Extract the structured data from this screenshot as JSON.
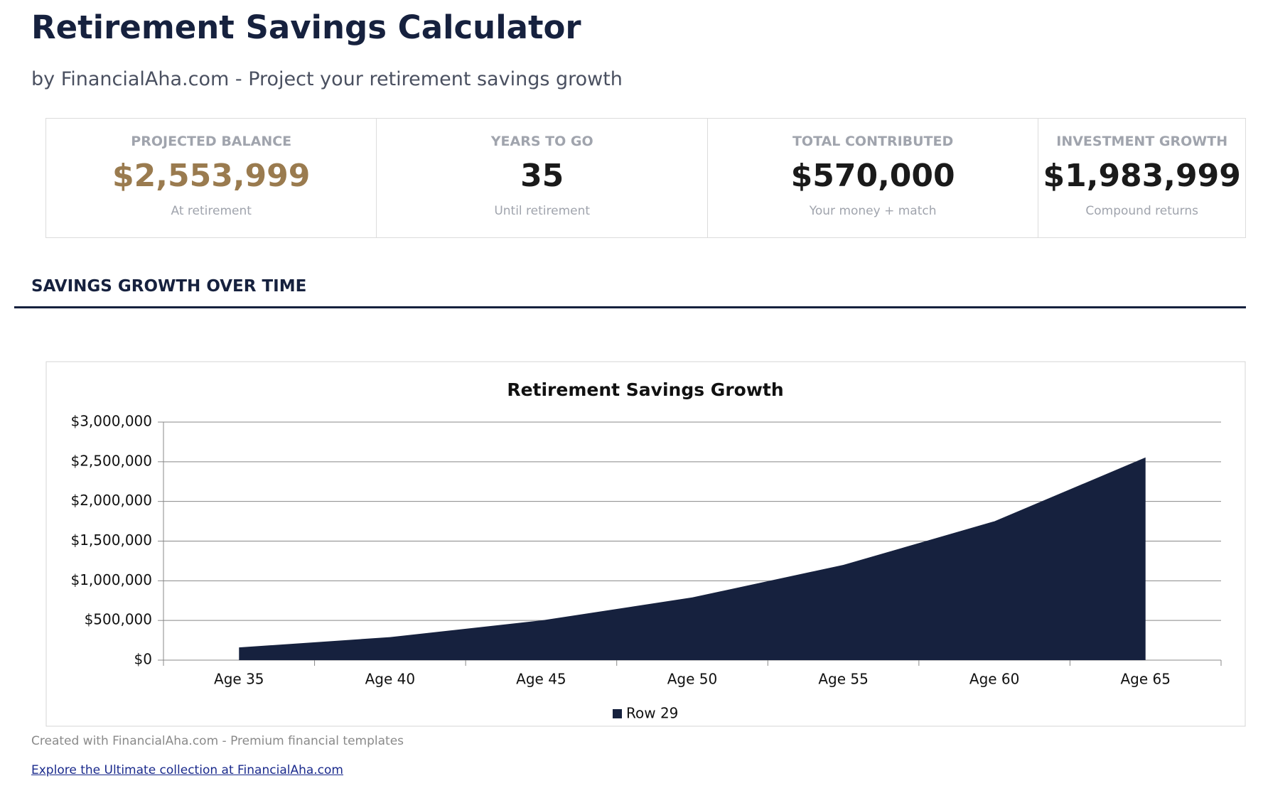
{
  "header": {
    "title": "Retirement Savings Calculator",
    "subtitle": "by FinancialAha.com - Project your retirement savings growth"
  },
  "metrics": [
    {
      "label": "PROJECTED BALANCE",
      "value": "$2,553,999",
      "note": "At retirement"
    },
    {
      "label": "YEARS TO GO",
      "value": "35",
      "note": "Until retirement"
    },
    {
      "label": "TOTAL CONTRIBUTED",
      "value": "$570,000",
      "note": "Your money + match"
    },
    {
      "label": "INVESTMENT GROWTH",
      "value": "$1,983,999",
      "note": "Compound returns"
    }
  ],
  "section_title": "SAVINGS GROWTH OVER TIME",
  "chart_data": {
    "type": "area",
    "title": "Retirement Savings Growth",
    "categories": [
      "Age 35",
      "Age 40",
      "Age 45",
      "Age 50",
      "Age 55",
      "Age 60",
      "Age 65"
    ],
    "series": [
      {
        "name": "Row 29",
        "color": "#16213e",
        "values": [
          160000,
          290000,
          500000,
          790000,
          1200000,
          1750000,
          2553999
        ]
      }
    ],
    "ylim": [
      0,
      3000000
    ],
    "yticks": [
      {
        "value": 0,
        "label": "$0"
      },
      {
        "value": 500000,
        "label": "$500,000"
      },
      {
        "value": 1000000,
        "label": "$1,000,000"
      },
      {
        "value": 1500000,
        "label": "$1,500,000"
      },
      {
        "value": 2000000,
        "label": "$2,000,000"
      },
      {
        "value": 2500000,
        "label": "$2,500,000"
      },
      {
        "value": 3000000,
        "label": "$3,000,000"
      }
    ],
    "grid": true,
    "legend": "bottom"
  },
  "footer": {
    "credit": "Created with FinancialAha.com - Premium financial templates",
    "link": "Explore the Ultimate collection at FinancialAha.com"
  }
}
